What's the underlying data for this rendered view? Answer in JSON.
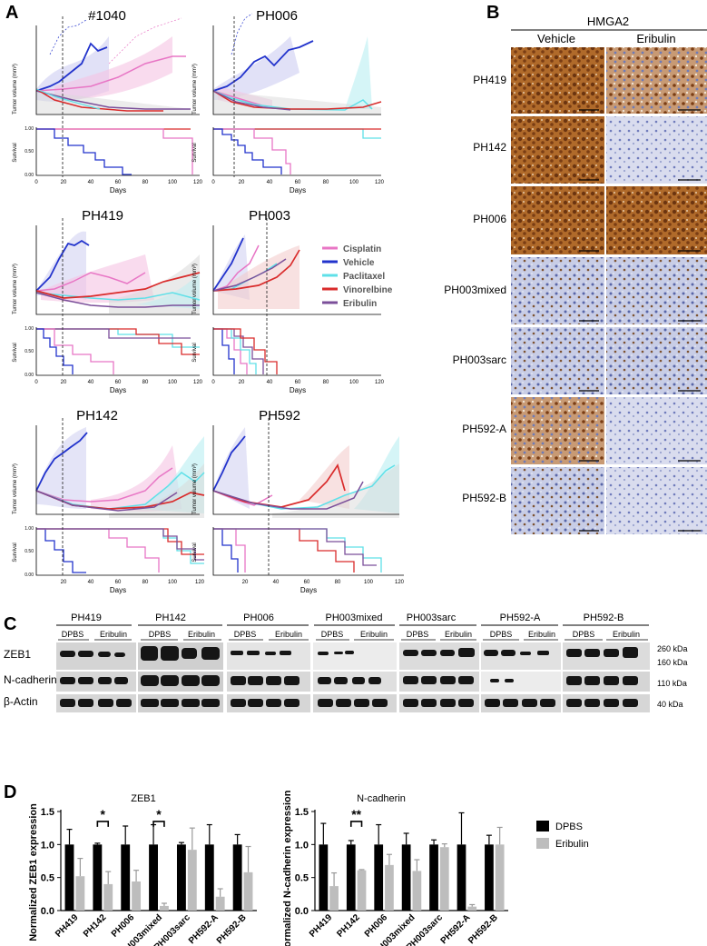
{
  "panel_letters": {
    "a": "A",
    "b": "B",
    "c": "C",
    "d": "D"
  },
  "panel_a": {
    "tumor_ylabel": "Tumor volume (mm³)",
    "survival_ylabel": "Survival",
    "xlabel": "Days",
    "x_ticks": [
      "0",
      "20",
      "40",
      "60",
      "80",
      "100",
      "120"
    ],
    "survival_ticks": [
      "0.00",
      "0.25",
      "0.50",
      "0.75",
      "1.00"
    ],
    "models": [
      "#1040",
      "PH006",
      "PH419",
      "PH003",
      "PH142",
      "PH592"
    ],
    "legend": [
      {
        "label": "Cisplatin",
        "color": "#e876c5"
      },
      {
        "label": "Vehicle",
        "color": "#2233cc"
      },
      {
        "label": "Paclitaxel",
        "color": "#5fe0e8"
      },
      {
        "label": "Vinorelbine",
        "color": "#d92b2b"
      },
      {
        "label": "Eribulin",
        "color": "#7b4f9a"
      }
    ]
  },
  "panel_b": {
    "marker": "HMGA2",
    "col_vehicle": "Vehicle",
    "col_eribulin": "Eribulin",
    "rows": [
      "PH419",
      "PH142",
      "PH006",
      "PH003mixed",
      "PH003sarc",
      "PH592-A",
      "PH592-B"
    ]
  },
  "panel_c": {
    "groups": [
      "PH419",
      "PH142",
      "PH006",
      "PH003mixed",
      "PH003sarc",
      "PH592-A",
      "PH592-B"
    ],
    "sub_dpbs": "DPBS",
    "sub_eribulin": "Eribulin",
    "row_labels": [
      "ZEB1",
      "N-cadherin",
      "β-Actin"
    ],
    "kda_labels": [
      "260 kDa",
      "160 kDa",
      "110 kDa",
      "40 kDa"
    ]
  },
  "panel_d": {
    "legend_dpbs": "DPBS",
    "legend_eribulin": "Eribulin",
    "colors": {
      "dpbs": "#000000",
      "eribulin": "#bdbdbd"
    },
    "chart_data": [
      {
        "type": "bar",
        "title": "ZEB1",
        "ylabel": "Normalized ZEB1 expression",
        "ylim": [
          0,
          1.5
        ],
        "yticks": [
          "0.0",
          "0.5",
          "1.0",
          "1.5"
        ],
        "categories": [
          "PH419",
          "PH142",
          "PH006",
          "PH003mixed",
          "PH003sarc",
          "PH592-A",
          "PH592-B"
        ],
        "series": [
          {
            "name": "DPBS",
            "values": [
              1.0,
              1.0,
              1.0,
              1.0,
              1.0,
              1.0,
              1.0
            ],
            "errors": [
              0.23,
              0.02,
              0.28,
              0.3,
              0.03,
              0.3,
              0.15
            ]
          },
          {
            "name": "Eribulin",
            "values": [
              0.52,
              0.4,
              0.44,
              0.07,
              0.92,
              0.21,
              0.58
            ],
            "errors": [
              0.27,
              0.19,
              0.17,
              0.04,
              0.33,
              0.12,
              0.39
            ]
          }
        ],
        "significance": [
          {
            "category": "PH142",
            "label": "*"
          },
          {
            "category": "PH003mixed",
            "label": "*"
          }
        ]
      },
      {
        "type": "bar",
        "title": "N-cadherin",
        "ylabel": "Normalized N-cadherin expression",
        "ylim": [
          0,
          1.5
        ],
        "yticks": [
          "0.0",
          "0.5",
          "1.0",
          "1.5"
        ],
        "categories": [
          "PH419",
          "PH142",
          "PH006",
          "PH003mixed",
          "PH003sarc",
          "PH592-A",
          "PH592-B"
        ],
        "series": [
          {
            "name": "DPBS",
            "values": [
              1.0,
              1.0,
              1.0,
              1.0,
              1.0,
              1.0,
              1.0
            ],
            "errors": [
              0.32,
              0.06,
              0.3,
              0.17,
              0.07,
              0.48,
              0.14
            ]
          },
          {
            "name": "Eribulin",
            "values": [
              0.37,
              0.61,
              0.69,
              0.6,
              0.96,
              0.06,
              1.0
            ],
            "errors": [
              0.2,
              0.01,
              0.16,
              0.17,
              0.05,
              0.03,
              0.26
            ]
          }
        ],
        "significance": [
          {
            "category": "PH142",
            "label": "**"
          }
        ]
      }
    ]
  }
}
